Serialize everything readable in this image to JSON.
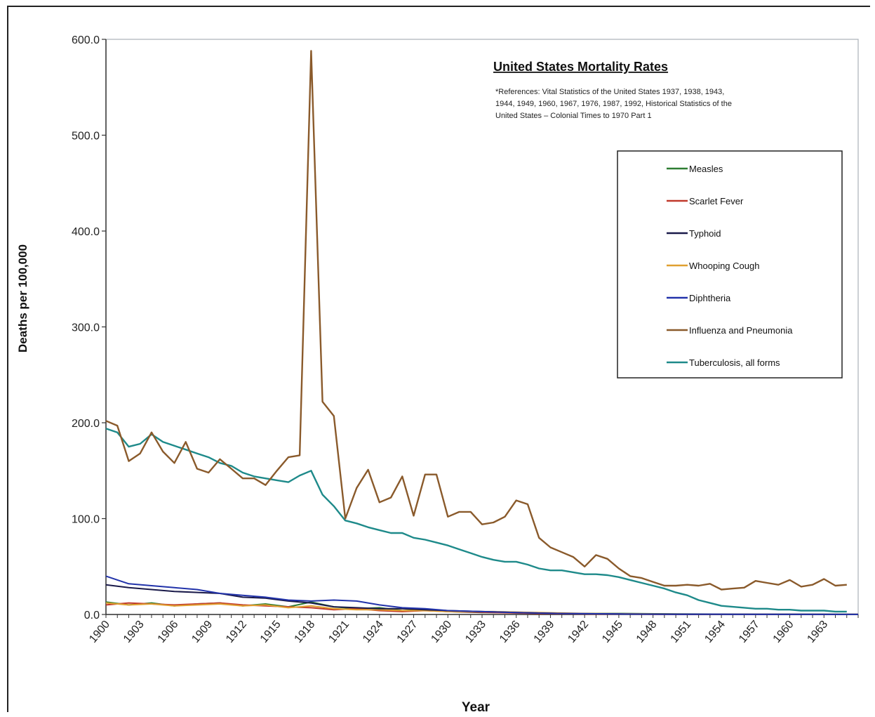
{
  "chart_data": {
    "type": "line",
    "title": "United States Mortality Rates",
    "subtitle": "*References: Vital Statistics of the United States 1937, 1938, 1943, 1944, 1949, 1960, 1967, 1976, 1987, 1992, Historical Statistics of the United States – Colonial Times to 1970 Part 1",
    "xlabel": "Year",
    "ylabel": "Deaths per 100,000",
    "ylim": [
      0,
      600
    ],
    "xlim": [
      1900,
      1966
    ],
    "y_ticks": [
      "0.0",
      "100.0",
      "200.0",
      "300.0",
      "400.0",
      "500.0",
      "600.0"
    ],
    "x_ticks": [
      "1900",
      "1903",
      "1906",
      "1909",
      "1912",
      "1915",
      "1918",
      "1921",
      "1924",
      "1927",
      "1930",
      "1933",
      "1936",
      "1939",
      "1942",
      "1945",
      "1948",
      "1951",
      "1954",
      "1957",
      "1960",
      "1963"
    ],
    "grid": false,
    "legend_position": "right",
    "series": [
      {
        "name": "Measles",
        "color": "#2e7d32",
        "x": [
          1900,
          1902,
          1904,
          1906,
          1908,
          1910,
          1912,
          1914,
          1916,
          1918,
          1920,
          1922,
          1924,
          1926,
          1928,
          1930,
          1933,
          1936,
          1940,
          1945,
          1950,
          1955,
          1960,
          1966
        ],
        "values": [
          13,
          10,
          12,
          9,
          11,
          12,
          9,
          11,
          8,
          13,
          8,
          6,
          7,
          4,
          5,
          3,
          2,
          2,
          1,
          1,
          0.5,
          0.3,
          0.2,
          0.1
        ]
      },
      {
        "name": "Scarlet Fever",
        "color": "#c0392b",
        "x": [
          1900,
          1902,
          1904,
          1906,
          1908,
          1910,
          1912,
          1914,
          1916,
          1918,
          1920,
          1922,
          1924,
          1926,
          1928,
          1930,
          1934,
          1938,
          1942,
          1948,
          1955,
          1966
        ],
        "values": [
          10,
          12,
          11,
          10,
          11,
          12,
          10,
          9,
          8,
          7,
          5,
          6,
          4,
          3,
          4,
          3,
          2,
          1,
          0.5,
          0.2,
          0.1,
          0.1
        ]
      },
      {
        "name": "Typhoid",
        "color": "#1a1a4a",
        "x": [
          1900,
          1902,
          1904,
          1906,
          1908,
          1910,
          1912,
          1914,
          1916,
          1918,
          1920,
          1922,
          1924,
          1926,
          1928,
          1930,
          1933,
          1936,
          1940,
          1945,
          1950,
          1960,
          1966
        ],
        "values": [
          31,
          28,
          26,
          24,
          23,
          22,
          18,
          17,
          14,
          12,
          8,
          7,
          6,
          6,
          5,
          4,
          3,
          2,
          1,
          0.5,
          0.2,
          0.1,
          0.1
        ]
      },
      {
        "name": "Whooping Cough",
        "color": "#e0a030",
        "x": [
          1900,
          1902,
          1904,
          1906,
          1908,
          1910,
          1912,
          1914,
          1916,
          1918,
          1920,
          1922,
          1924,
          1926,
          1928,
          1930,
          1934,
          1938,
          1942,
          1948,
          1955,
          1966
        ],
        "values": [
          12,
          10,
          11,
          9,
          10,
          11,
          9,
          10,
          7,
          9,
          6,
          5,
          5,
          4,
          4,
          3,
          3,
          2,
          1,
          0.5,
          0.2,
          0.1
        ]
      },
      {
        "name": "Diphtheria",
        "color": "#2233aa",
        "x": [
          1900,
          1902,
          1904,
          1906,
          1908,
          1910,
          1912,
          1914,
          1916,
          1918,
          1920,
          1922,
          1924,
          1926,
          1928,
          1930,
          1933,
          1936,
          1940,
          1945,
          1950,
          1955,
          1966
        ],
        "values": [
          40,
          32,
          30,
          28,
          26,
          22,
          20,
          18,
          15,
          14,
          15,
          14,
          10,
          7,
          6,
          4,
          3,
          2,
          1,
          0.5,
          0.3,
          0.2,
          0.1
        ]
      },
      {
        "name": "Influenza and Pneumonia",
        "color": "#8a5a2b",
        "x": [
          1900,
          1901,
          1902,
          1903,
          1904,
          1905,
          1906,
          1907,
          1908,
          1909,
          1910,
          1911,
          1912,
          1913,
          1914,
          1915,
          1916,
          1917,
          1918,
          1919,
          1920,
          1921,
          1922,
          1923,
          1924,
          1925,
          1926,
          1927,
          1928,
          1929,
          1930,
          1931,
          1932,
          1933,
          1934,
          1935,
          1936,
          1937,
          1938,
          1939,
          1940,
          1941,
          1942,
          1943,
          1944,
          1945,
          1946,
          1947,
          1948,
          1949,
          1950,
          1951,
          1952,
          1953,
          1954,
          1955,
          1956,
          1957,
          1958,
          1959,
          1960,
          1961,
          1962,
          1963,
          1964,
          1965
        ],
        "values": [
          202,
          197,
          160,
          168,
          190,
          170,
          158,
          180,
          152,
          148,
          162,
          152,
          142,
          142,
          135,
          150,
          164,
          166,
          588,
          222,
          207,
          100,
          132,
          151,
          117,
          122,
          144,
          103,
          146,
          146,
          102,
          107,
          107,
          94,
          96,
          102,
          119,
          115,
          80,
          70,
          65,
          60,
          50,
          62,
          58,
          48,
          40,
          38,
          34,
          30,
          30,
          31,
          30,
          32,
          26,
          27,
          28,
          35,
          33,
          31,
          36,
          29,
          31,
          37,
          30,
          31
        ]
      },
      {
        "name": "Tuberculosis, all forms",
        "color": "#1e8a8a",
        "x": [
          1900,
          1901,
          1902,
          1903,
          1904,
          1905,
          1906,
          1907,
          1908,
          1909,
          1910,
          1911,
          1912,
          1913,
          1914,
          1915,
          1916,
          1917,
          1918,
          1919,
          1920,
          1921,
          1922,
          1923,
          1924,
          1925,
          1926,
          1927,
          1928,
          1929,
          1930,
          1931,
          1932,
          1933,
          1934,
          1935,
          1936,
          1937,
          1938,
          1939,
          1940,
          1941,
          1942,
          1943,
          1944,
          1945,
          1946,
          1947,
          1948,
          1949,
          1950,
          1951,
          1952,
          1953,
          1954,
          1955,
          1956,
          1957,
          1958,
          1959,
          1960,
          1961,
          1962,
          1963,
          1964,
          1965
        ],
        "values": [
          194,
          190,
          175,
          178,
          188,
          180,
          176,
          172,
          168,
          164,
          158,
          155,
          148,
          144,
          142,
          140,
          138,
          145,
          150,
          125,
          113,
          98,
          95,
          91,
          88,
          85,
          85,
          80,
          78,
          75,
          72,
          68,
          64,
          60,
          57,
          55,
          55,
          52,
          48,
          46,
          46,
          44,
          42,
          42,
          41,
          39,
          36,
          33,
          30,
          27,
          23,
          20,
          15,
          12,
          9,
          8,
          7,
          6,
          6,
          5,
          5,
          4,
          4,
          4,
          3,
          3
        ]
      }
    ]
  }
}
